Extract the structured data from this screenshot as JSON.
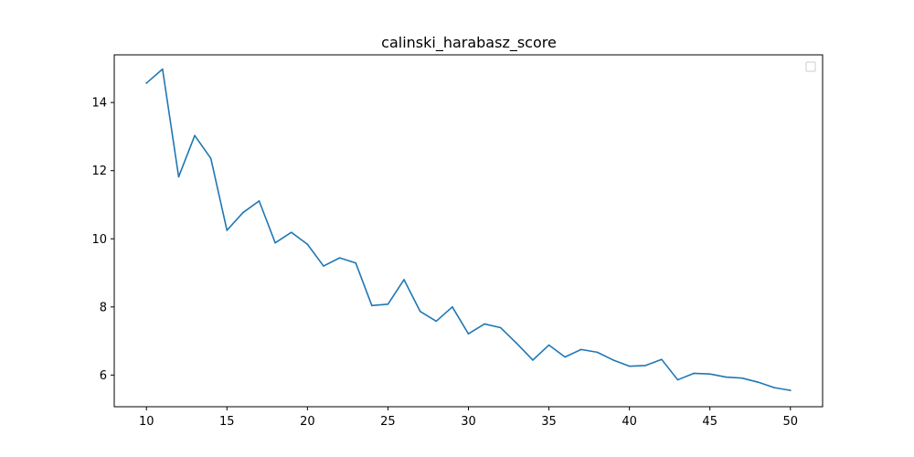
{
  "chart_data": {
    "type": "line",
    "title": "calinski_harabasz_score",
    "xlabel": "",
    "ylabel": "",
    "xlim": [
      8,
      52
    ],
    "ylim": [
      5.07,
      15.4
    ],
    "x_ticks": [
      10,
      15,
      20,
      25,
      30,
      35,
      40,
      45,
      50
    ],
    "y_ticks": [
      6,
      8,
      10,
      12,
      14
    ],
    "grid": false,
    "legend": "top-right",
    "series": [
      {
        "color": "#1f77b4",
        "x": [
          10,
          11,
          12,
          13,
          14,
          15,
          16,
          17,
          18,
          19,
          20,
          21,
          22,
          23,
          24,
          25,
          26,
          27,
          28,
          29,
          30,
          31,
          32,
          33,
          34,
          35,
          36,
          37,
          38,
          39,
          40,
          41,
          42,
          43,
          44,
          45,
          46,
          47,
          48,
          49,
          50
        ],
        "values": [
          14.57,
          14.98,
          11.82,
          13.03,
          12.36,
          10.25,
          10.77,
          11.11,
          9.88,
          10.19,
          9.84,
          9.2,
          9.44,
          9.29,
          8.04,
          8.08,
          8.8,
          7.87,
          7.58,
          8.0,
          7.21,
          7.5,
          7.39,
          6.93,
          6.44,
          6.88,
          6.53,
          6.75,
          6.67,
          6.44,
          6.26,
          6.28,
          6.46,
          5.86,
          6.05,
          6.03,
          5.94,
          5.91,
          5.79,
          5.63,
          5.55
        ]
      }
    ]
  }
}
